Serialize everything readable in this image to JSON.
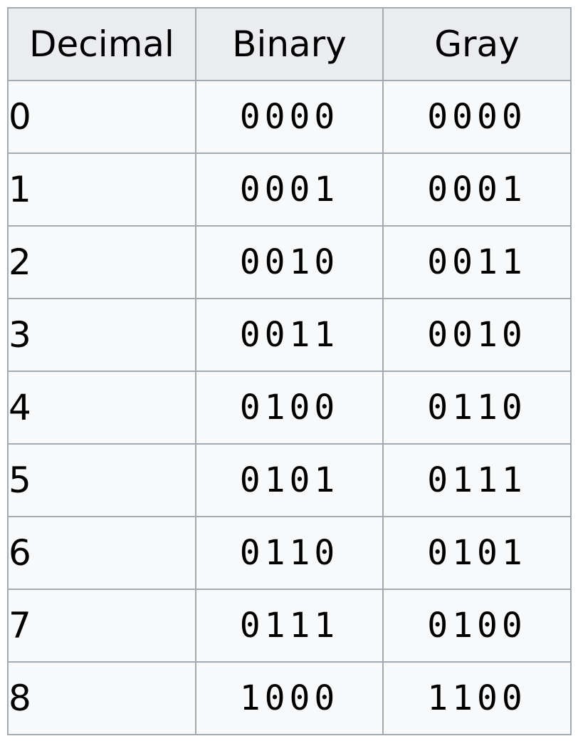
{
  "table": {
    "headers": [
      "Decimal",
      "Binary",
      "Gray"
    ],
    "rows": [
      {
        "decimal": "0",
        "binary": "0000",
        "gray": "0000"
      },
      {
        "decimal": "1",
        "binary": "0001",
        "gray": "0001"
      },
      {
        "decimal": "2",
        "binary": "0010",
        "gray": "0011"
      },
      {
        "decimal": "3",
        "binary": "0011",
        "gray": "0010"
      },
      {
        "decimal": "4",
        "binary": "0100",
        "gray": "0110"
      },
      {
        "decimal": "5",
        "binary": "0101",
        "gray": "0111"
      },
      {
        "decimal": "6",
        "binary": "0110",
        "gray": "0101"
      },
      {
        "decimal": "7",
        "binary": "0111",
        "gray": "0100"
      },
      {
        "decimal": "8",
        "binary": "1000",
        "gray": "1100"
      }
    ]
  },
  "colors": {
    "header_background": "#eaecf0",
    "cell_background": "#f8f9fa",
    "border": "#a2a9b1"
  }
}
